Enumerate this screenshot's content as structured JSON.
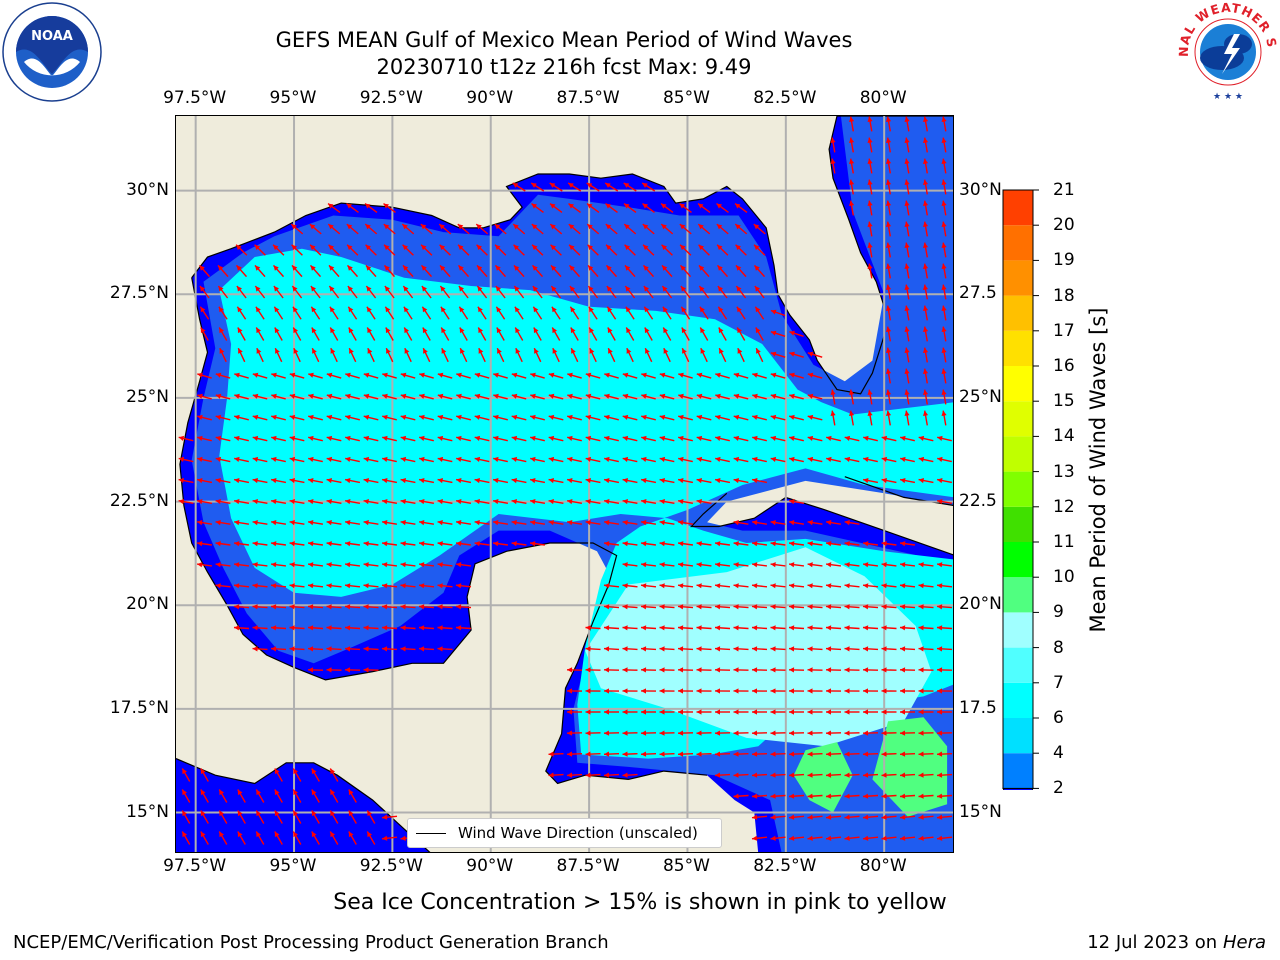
{
  "title": {
    "line1": "GEFS MEAN Gulf of Mexico Mean Period of Wind Waves",
    "line2": "20230710 t12z 216h fcst   Max: 9.49"
  },
  "map": {
    "lon_labels": [
      "97.5°W",
      "95°W",
      "92.5°W",
      "90°W",
      "87.5°W",
      "85°W",
      "82.5°W",
      "80°W"
    ],
    "lon_values": [
      -97.5,
      -95,
      -92.5,
      -90,
      -87.5,
      -85,
      -82.5,
      -80
    ],
    "lat_labels_left": [
      "30°N",
      "27.5°N",
      "25°N",
      "22.5°N",
      "20°N",
      "17.5°N",
      "15°N"
    ],
    "lat_labels_right": [
      "30°N",
      "27.5",
      "25°N",
      "22.5",
      "20°N",
      "17.5",
      "15°N"
    ],
    "lat_values": [
      30,
      27.5,
      25,
      22.5,
      20,
      17.5,
      15
    ],
    "lon_range": [
      -98,
      -78.2
    ],
    "lat_range": [
      14,
      31.8
    ],
    "legend_label": "Wind Wave Direction (unscaled)",
    "arrow_color": "#ff0000",
    "land_color": "#efecdc"
  },
  "colorbar": {
    "title": "Mean Period of Wind Waves [s]",
    "tick_labels": [
      "2",
      "4",
      "6",
      "7",
      "8",
      "9",
      "10",
      "11",
      "12",
      "13",
      "14",
      "15",
      "16",
      "17",
      "18",
      "19",
      "20",
      "21"
    ],
    "colors": [
      "#0080ff",
      "#00e0ff",
      "#00ffff",
      "#50ffff",
      "#a0ffff",
      "#50ff80",
      "#00ff00",
      "#40e000",
      "#80ff00",
      "#c0ff00",
      "#e0ff00",
      "#ffff00",
      "#ffe000",
      "#ffc000",
      "#ff9000",
      "#ff7000",
      "#ff4000",
      "#ff0000"
    ],
    "under_color": "#0000ff"
  },
  "subtitle": "Sea Ice Concentration > 15% is shown in pink to yellow",
  "footer": {
    "left": "NCEP/EMC/Verification Post Processing Product Generation Branch",
    "right_date": "12 Jul 2023 on ",
    "right_host": "Hera"
  },
  "logos": {
    "noaa_text": "NOAA",
    "nws_text": "NATIONAL WEATHER SERVICE"
  }
}
